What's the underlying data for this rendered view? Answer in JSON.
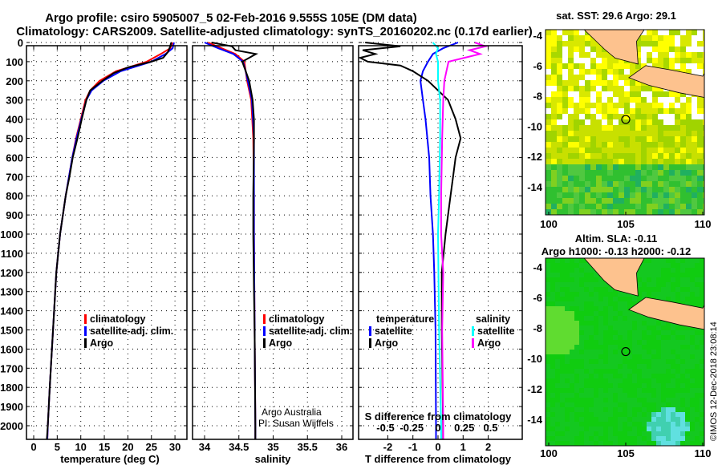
{
  "title_line1": "Argo profile: csiro 5905007_5 02-Feb-2016 9.555S 105E (DM data)",
  "title_line2": "Climatology: CARS2009. Satellite-adjusted climatology: synTS_20160202.nc (0.17d earlier)",
  "credit": "©IMOS 12-Dec-2018 23:08:14",
  "colors": {
    "climatology": "#ff0000",
    "satellite": "#0000ff",
    "argo": "#000000",
    "sal_satellite": "#00ffff",
    "sal_argo": "#ff00ff",
    "land": "#fdc28e"
  },
  "chart_data": [
    {
      "type": "line",
      "id": "temperature",
      "xlabel": "temperature (deg C)",
      "ylabel": "",
      "xlim": [
        -1,
        31
      ],
      "ylim": [
        2070,
        0
      ],
      "xticks": [
        "0",
        "5",
        "10",
        "15",
        "20",
        "25",
        "30"
      ],
      "yticks": [
        "0",
        "100",
        "200",
        "300",
        "400",
        "500",
        "600",
        "700",
        "800",
        "900",
        "1000",
        "1100",
        "1200",
        "1300",
        "1400",
        "1500",
        "1600",
        "1700",
        "1800",
        "1900",
        "2000"
      ],
      "legend": [
        "climatology",
        "satellite-adj. clim.",
        "Argo"
      ],
      "series": [
        {
          "name": "climatology",
          "depth": [
            0,
            30,
            60,
            100,
            150,
            200,
            250,
            300,
            400,
            500,
            600,
            700,
            800,
            1000,
            1200,
            1500,
            1800,
            2000,
            2070
          ],
          "value": [
            29.5,
            29,
            27,
            24,
            17.5,
            14,
            12,
            11,
            10,
            9,
            8.2,
            7.5,
            6.8,
            5.6,
            4.8,
            4.1,
            3.4,
            3,
            2.9
          ]
        },
        {
          "name": "satellite-adj. clim.",
          "depth": [
            0,
            30,
            60,
            100,
            150,
            200,
            250,
            300,
            400,
            500,
            600,
            700,
            800,
            1000,
            1200,
            1500,
            1800,
            2000,
            2070
          ],
          "value": [
            29.8,
            29.5,
            28,
            25,
            18.5,
            14.8,
            12.3,
            11.2,
            10.1,
            9.1,
            8.2,
            7.5,
            6.8,
            5.6,
            4.8,
            4.1,
            3.4,
            3,
            2.9
          ]
        },
        {
          "name": "Argo",
          "depth": [
            0,
            20,
            50,
            80,
            100,
            130,
            160,
            200,
            250,
            300,
            400,
            500,
            600,
            700,
            800,
            1000,
            1200,
            1500,
            1800,
            2000,
            2070
          ],
          "value": [
            29.2,
            29,
            28.5,
            27.5,
            25,
            20,
            17,
            14.6,
            12,
            11.2,
            10.2,
            9.3,
            8.3,
            7.6,
            6.8,
            5.6,
            4.8,
            4.1,
            3.4,
            3,
            2.8
          ]
        }
      ]
    },
    {
      "type": "line",
      "id": "salinity",
      "xlabel": "salinity",
      "ylabel": "",
      "xlim": [
        33.85,
        36.2
      ],
      "ylim": [
        2070,
        0
      ],
      "xticks": [
        "34",
        "34.5",
        "35",
        "35.5",
        "36"
      ],
      "legend": [
        "climatology",
        "satellite-adj. clim.",
        "Argo"
      ],
      "annotation": [
        "Argo Australia",
        "PI: Susan Wijffels"
      ],
      "series": [
        {
          "name": "climatology",
          "depth": [
            0,
            30,
            60,
            100,
            150,
            200,
            300,
            500,
            800,
            1000,
            1500,
            2000,
            2070
          ],
          "value": [
            34.05,
            34.25,
            34.45,
            34.58,
            34.6,
            34.62,
            34.68,
            34.71,
            34.72,
            34.72,
            34.73,
            34.74,
            34.74
          ]
        },
        {
          "name": "satellite-adj. clim.",
          "depth": [
            0,
            30,
            60,
            100,
            150,
            200,
            300,
            500,
            800,
            1000,
            1500,
            2000,
            2070
          ],
          "value": [
            34.0,
            34.2,
            34.42,
            34.56,
            34.6,
            34.63,
            34.69,
            34.72,
            34.72,
            34.72,
            34.73,
            34.74,
            34.74
          ]
        },
        {
          "name": "Argo",
          "depth": [
            0,
            20,
            40,
            60,
            80,
            100,
            150,
            200,
            300,
            400,
            500,
            800,
            1000,
            1300,
            1500,
            2000,
            2070
          ],
          "value": [
            34.1,
            34.4,
            34.45,
            34.75,
            34.65,
            34.55,
            34.6,
            34.65,
            34.7,
            34.72,
            34.72,
            34.71,
            34.71,
            34.72,
            34.73,
            34.74,
            34.74
          ]
        }
      ]
    },
    {
      "type": "line",
      "id": "difference",
      "xlabel": "T difference from climatology",
      "x2label": "S difference from climatology",
      "xlim": [
        -3,
        3
      ],
      "x2lim": [
        -0.7,
        0.8
      ],
      "ylim": [
        2070,
        0
      ],
      "xticks": [
        "-2",
        "-1",
        "0",
        "1",
        "2"
      ],
      "x2ticks": [
        "-0.5",
        "-0.25",
        "0",
        "0.25",
        "0.5"
      ],
      "legend_temperature": {
        "title": "temperature",
        "items": [
          "satellite",
          "Argo"
        ]
      },
      "legend_salinity": {
        "title": "salinity",
        "items": [
          "satellite",
          "Argo"
        ]
      },
      "series": [
        {
          "name": "T satellite",
          "axis": "T",
          "depth": [
            0,
            30,
            60,
            100,
            150,
            200,
            300,
            400,
            600,
            800,
            1000,
            1200,
            1500,
            2000,
            2070
          ],
          "value": [
            0.8,
            0.2,
            -0.2,
            -0.4,
            -0.6,
            -0.7,
            -0.6,
            -0.5,
            -0.35,
            -0.3,
            -0.2,
            -0.15,
            -0.1,
            -0.08,
            -0.08
          ]
        },
        {
          "name": "T Argo",
          "axis": "T",
          "depth": [
            0,
            20,
            40,
            60,
            80,
            100,
            120,
            150,
            200,
            300,
            400,
            500,
            600,
            700,
            800,
            1000,
            1200,
            1500,
            2000,
            2070
          ],
          "value": [
            -2.9,
            -1.5,
            -3,
            -2.5,
            -3.1,
            -2.8,
            -1.5,
            -1,
            -0.4,
            0.4,
            0.7,
            0.9,
            0.7,
            0.6,
            0.5,
            0.3,
            0.15,
            0.15,
            0.2,
            0.2
          ]
        },
        {
          "name": "S satellite",
          "axis": "S",
          "depth": [
            0,
            30,
            60,
            100,
            200,
            300,
            500,
            800,
            1000,
            1500,
            2000,
            2070
          ],
          "value": [
            -0.05,
            0,
            -0.02,
            0,
            0,
            0.02,
            0.02,
            0.01,
            0,
            0.01,
            0.03,
            0.03
          ]
        },
        {
          "name": "S Argo",
          "axis": "S",
          "depth": [
            0,
            20,
            40,
            60,
            80,
            100,
            150,
            200,
            300,
            500,
            800,
            1000,
            1200,
            1500,
            2000,
            2070
          ],
          "value": [
            0.35,
            0.45,
            0.3,
            0.4,
            0.25,
            0.1,
            0.08,
            0.06,
            0.05,
            0.04,
            0.03,
            0.03,
            0.05,
            0.04,
            0.05,
            0.05
          ]
        }
      ]
    },
    {
      "type": "heatmap",
      "id": "sst-map",
      "title": "sat. SST: 29.6 Argo: 29.1",
      "xticks": [
        "100",
        "105",
        "110"
      ],
      "yticks": [
        "-4",
        "-6",
        "-8",
        "-10",
        "-12",
        "-14"
      ],
      "xlim": [
        100,
        110
      ],
      "ylim": [
        -15,
        -3.6
      ],
      "argo_position": [
        105,
        -9.555
      ]
    },
    {
      "type": "heatmap",
      "id": "sla-map",
      "title": "Altim. SLA: -0.11",
      "subtitle": "Argo h1000: -0.13 h2000: -0.12",
      "xticks": [
        "100",
        "105",
        "110"
      ],
      "yticks": [
        "-4",
        "-6",
        "-8",
        "-10",
        "-12",
        "-14"
      ],
      "xlim": [
        100,
        110
      ],
      "ylim": [
        -15,
        -3.6
      ],
      "argo_position": [
        105,
        -9.555
      ]
    }
  ]
}
